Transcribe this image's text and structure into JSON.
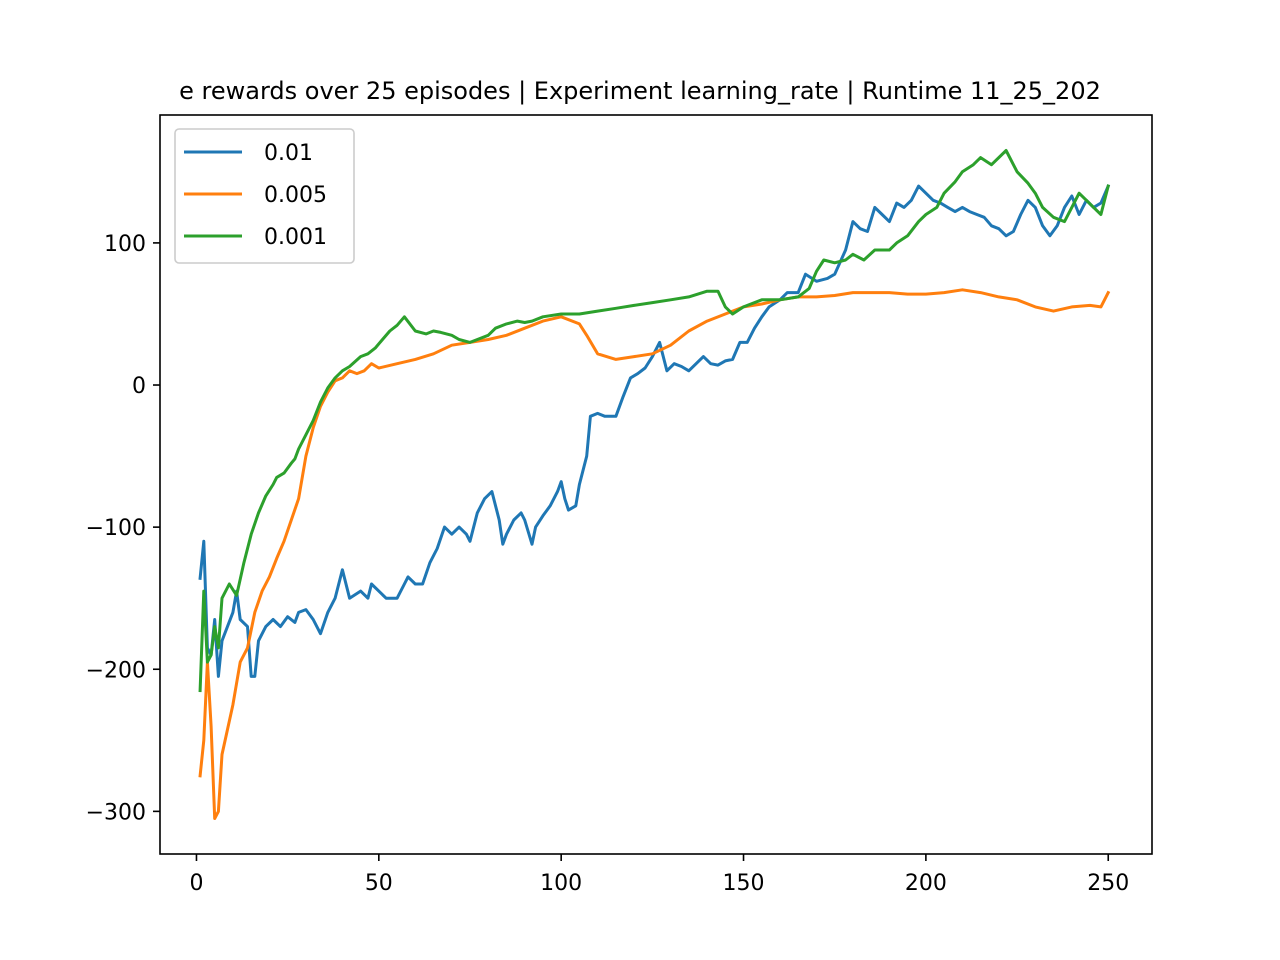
{
  "chart_data": {
    "type": "line",
    "title": "e rewards over 25 episodes | Experiment learning_rate | Runtime 11_25_202",
    "xlabel": "",
    "ylabel": "",
    "xlim": [
      -10,
      262
    ],
    "ylim": [
      -330,
      190
    ],
    "xticks": [
      0,
      50,
      100,
      150,
      200,
      250
    ],
    "yticks": [
      -300,
      -200,
      -100,
      0,
      100
    ],
    "xtick_labels": [
      "0",
      "50",
      "100",
      "150",
      "200",
      "250"
    ],
    "ytick_labels": [
      "−300",
      "−200",
      "−100",
      "0",
      "100"
    ],
    "grid": false,
    "legend": "top-left",
    "series": [
      {
        "name": "0.01",
        "color": "#1f77b4",
        "points": [
          [
            1,
            -136
          ],
          [
            2,
            -110
          ],
          [
            3,
            -185
          ],
          [
            4,
            -190
          ],
          [
            5,
            -165
          ],
          [
            6,
            -205
          ],
          [
            7,
            -180
          ],
          [
            10,
            -160
          ],
          [
            11,
            -145
          ],
          [
            12,
            -165
          ],
          [
            14,
            -170
          ],
          [
            15,
            -205
          ],
          [
            16,
            -205
          ],
          [
            17,
            -180
          ],
          [
            19,
            -170
          ],
          [
            21,
            -165
          ],
          [
            23,
            -170
          ],
          [
            25,
            -163
          ],
          [
            27,
            -167
          ],
          [
            28,
            -160
          ],
          [
            30,
            -158
          ],
          [
            32,
            -165
          ],
          [
            34,
            -175
          ],
          [
            36,
            -160
          ],
          [
            38,
            -150
          ],
          [
            40,
            -130
          ],
          [
            42,
            -150
          ],
          [
            45,
            -145
          ],
          [
            47,
            -150
          ],
          [
            48,
            -140
          ],
          [
            50,
            -145
          ],
          [
            52,
            -150
          ],
          [
            55,
            -150
          ],
          [
            57,
            -140
          ],
          [
            58,
            -135
          ],
          [
            60,
            -140
          ],
          [
            62,
            -140
          ],
          [
            64,
            -125
          ],
          [
            66,
            -115
          ],
          [
            68,
            -100
          ],
          [
            70,
            -105
          ],
          [
            72,
            -100
          ],
          [
            74,
            -105
          ],
          [
            75,
            -110
          ],
          [
            77,
            -90
          ],
          [
            79,
            -80
          ],
          [
            81,
            -75
          ],
          [
            83,
            -95
          ],
          [
            84,
            -112
          ],
          [
            85,
            -105
          ],
          [
            87,
            -95
          ],
          [
            89,
            -90
          ],
          [
            90,
            -95
          ],
          [
            92,
            -112
          ],
          [
            93,
            -100
          ],
          [
            95,
            -92
          ],
          [
            97,
            -85
          ],
          [
            99,
            -75
          ],
          [
            100,
            -68
          ],
          [
            101,
            -80
          ],
          [
            102,
            -88
          ],
          [
            104,
            -85
          ],
          [
            105,
            -70
          ],
          [
            107,
            -50
          ],
          [
            108,
            -22
          ],
          [
            110,
            -20
          ],
          [
            112,
            -22
          ],
          [
            115,
            -22
          ],
          [
            117,
            -8
          ],
          [
            119,
            5
          ],
          [
            121,
            8
          ],
          [
            123,
            12
          ],
          [
            125,
            20
          ],
          [
            127,
            30
          ],
          [
            129,
            10
          ],
          [
            131,
            15
          ],
          [
            133,
            13
          ],
          [
            135,
            10
          ],
          [
            137,
            15
          ],
          [
            139,
            20
          ],
          [
            141,
            15
          ],
          [
            143,
            14
          ],
          [
            145,
            17
          ],
          [
            147,
            18
          ],
          [
            149,
            30
          ],
          [
            151,
            30
          ],
          [
            153,
            40
          ],
          [
            155,
            48
          ],
          [
            157,
            55
          ],
          [
            160,
            60
          ],
          [
            162,
            65
          ],
          [
            165,
            65
          ],
          [
            167,
            78
          ],
          [
            170,
            73
          ],
          [
            173,
            75
          ],
          [
            175,
            78
          ],
          [
            178,
            95
          ],
          [
            180,
            115
          ],
          [
            182,
            110
          ],
          [
            184,
            108
          ],
          [
            186,
            125
          ],
          [
            188,
            120
          ],
          [
            190,
            115
          ],
          [
            192,
            128
          ],
          [
            194,
            125
          ],
          [
            196,
            130
          ],
          [
            198,
            140
          ],
          [
            200,
            135
          ],
          [
            202,
            130
          ],
          [
            204,
            128
          ],
          [
            206,
            125
          ],
          [
            208,
            122
          ],
          [
            210,
            125
          ],
          [
            212,
            122
          ],
          [
            214,
            120
          ],
          [
            216,
            118
          ],
          [
            218,
            112
          ],
          [
            220,
            110
          ],
          [
            222,
            105
          ],
          [
            224,
            108
          ],
          [
            226,
            120
          ],
          [
            228,
            130
          ],
          [
            230,
            125
          ],
          [
            232,
            112
          ],
          [
            234,
            105
          ],
          [
            236,
            112
          ],
          [
            238,
            125
          ],
          [
            240,
            133
          ],
          [
            242,
            120
          ],
          [
            244,
            130
          ],
          [
            246,
            125
          ],
          [
            248,
            128
          ],
          [
            250,
            140
          ]
        ]
      },
      {
        "name": "0.005",
        "color": "#ff7f0e",
        "points": [
          [
            1,
            -275
          ],
          [
            2,
            -250
          ],
          [
            3,
            -195
          ],
          [
            4,
            -240
          ],
          [
            5,
            -305
          ],
          [
            6,
            -300
          ],
          [
            7,
            -260
          ],
          [
            10,
            -225
          ],
          [
            12,
            -195
          ],
          [
            14,
            -185
          ],
          [
            16,
            -160
          ],
          [
            18,
            -145
          ],
          [
            20,
            -135
          ],
          [
            22,
            -122
          ],
          [
            24,
            -110
          ],
          [
            26,
            -95
          ],
          [
            28,
            -80
          ],
          [
            30,
            -50
          ],
          [
            32,
            -30
          ],
          [
            34,
            -15
          ],
          [
            36,
            -5
          ],
          [
            38,
            3
          ],
          [
            40,
            5
          ],
          [
            42,
            10
          ],
          [
            44,
            8
          ],
          [
            46,
            10
          ],
          [
            48,
            15
          ],
          [
            50,
            12
          ],
          [
            55,
            15
          ],
          [
            60,
            18
          ],
          [
            65,
            22
          ],
          [
            70,
            28
          ],
          [
            75,
            30
          ],
          [
            80,
            32
          ],
          [
            85,
            35
          ],
          [
            90,
            40
          ],
          [
            95,
            45
          ],
          [
            100,
            48
          ],
          [
            105,
            43
          ],
          [
            107,
            35
          ],
          [
            110,
            22
          ],
          [
            115,
            18
          ],
          [
            120,
            20
          ],
          [
            125,
            22
          ],
          [
            130,
            28
          ],
          [
            135,
            38
          ],
          [
            140,
            45
          ],
          [
            145,
            50
          ],
          [
            150,
            55
          ],
          [
            155,
            57
          ],
          [
            160,
            60
          ],
          [
            165,
            62
          ],
          [
            170,
            62
          ],
          [
            175,
            63
          ],
          [
            180,
            65
          ],
          [
            185,
            65
          ],
          [
            190,
            65
          ],
          [
            195,
            64
          ],
          [
            200,
            64
          ],
          [
            205,
            65
          ],
          [
            210,
            67
          ],
          [
            215,
            65
          ],
          [
            220,
            62
          ],
          [
            225,
            60
          ],
          [
            230,
            55
          ],
          [
            235,
            52
          ],
          [
            240,
            55
          ],
          [
            245,
            56
          ],
          [
            248,
            55
          ],
          [
            250,
            65
          ]
        ]
      },
      {
        "name": "0.001",
        "color": "#2ca02c",
        "points": [
          [
            1,
            -215
          ],
          [
            2,
            -145
          ],
          [
            3,
            -195
          ],
          [
            4,
            -190
          ],
          [
            5,
            -170
          ],
          [
            6,
            -185
          ],
          [
            7,
            -150
          ],
          [
            9,
            -140
          ],
          [
            11,
            -148
          ],
          [
            13,
            -125
          ],
          [
            15,
            -105
          ],
          [
            17,
            -90
          ],
          [
            19,
            -78
          ],
          [
            21,
            -70
          ],
          [
            22,
            -65
          ],
          [
            24,
            -62
          ],
          [
            26,
            -55
          ],
          [
            27,
            -52
          ],
          [
            28,
            -45
          ],
          [
            30,
            -35
          ],
          [
            32,
            -25
          ],
          [
            34,
            -12
          ],
          [
            36,
            -2
          ],
          [
            38,
            5
          ],
          [
            40,
            10
          ],
          [
            42,
            13
          ],
          [
            45,
            20
          ],
          [
            47,
            22
          ],
          [
            49,
            26
          ],
          [
            51,
            32
          ],
          [
            53,
            38
          ],
          [
            55,
            42
          ],
          [
            57,
            48
          ],
          [
            60,
            38
          ],
          [
            63,
            36
          ],
          [
            65,
            38
          ],
          [
            67,
            37
          ],
          [
            70,
            35
          ],
          [
            72,
            32
          ],
          [
            75,
            30
          ],
          [
            78,
            33
          ],
          [
            80,
            35
          ],
          [
            82,
            40
          ],
          [
            85,
            43
          ],
          [
            88,
            45
          ],
          [
            90,
            44
          ],
          [
            92,
            45
          ],
          [
            95,
            48
          ],
          [
            100,
            50
          ],
          [
            105,
            50
          ],
          [
            110,
            52
          ],
          [
            115,
            54
          ],
          [
            120,
            56
          ],
          [
            125,
            58
          ],
          [
            130,
            60
          ],
          [
            135,
            62
          ],
          [
            140,
            66
          ],
          [
            143,
            66
          ],
          [
            145,
            55
          ],
          [
            147,
            50
          ],
          [
            150,
            55
          ],
          [
            155,
            60
          ],
          [
            160,
            60
          ],
          [
            165,
            62
          ],
          [
            168,
            68
          ],
          [
            170,
            80
          ],
          [
            172,
            88
          ],
          [
            175,
            86
          ],
          [
            178,
            88
          ],
          [
            180,
            92
          ],
          [
            183,
            88
          ],
          [
            186,
            95
          ],
          [
            190,
            95
          ],
          [
            192,
            100
          ],
          [
            195,
            105
          ],
          [
            198,
            115
          ],
          [
            200,
            120
          ],
          [
            203,
            125
          ],
          [
            205,
            135
          ],
          [
            208,
            143
          ],
          [
            210,
            150
          ],
          [
            213,
            155
          ],
          [
            215,
            160
          ],
          [
            218,
            155
          ],
          [
            222,
            165
          ],
          [
            225,
            150
          ],
          [
            228,
            142
          ],
          [
            230,
            135
          ],
          [
            232,
            125
          ],
          [
            235,
            118
          ],
          [
            238,
            115
          ],
          [
            240,
            125
          ],
          [
            242,
            135
          ],
          [
            244,
            130
          ],
          [
            246,
            125
          ],
          [
            248,
            120
          ],
          [
            250,
            140
          ]
        ]
      }
    ]
  }
}
